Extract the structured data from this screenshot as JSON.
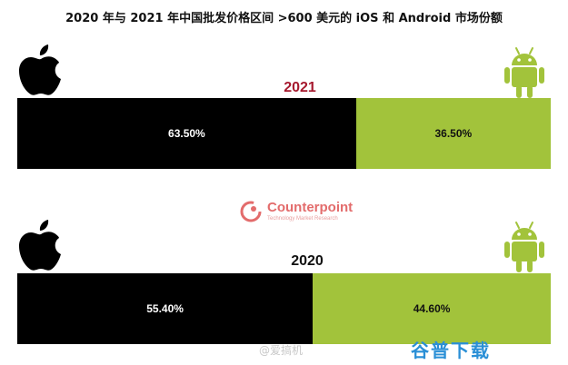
{
  "chart_data": {
    "type": "bar",
    "title": "2020 年与 2021 年中国批发价格区间 >600 美元的 iOS 和 Android 市场份额",
    "stacked": true,
    "orientation": "horizontal",
    "categories": [
      "2021",
      "2020"
    ],
    "series": [
      {
        "key": "ios",
        "values": [
          63.5,
          55.4
        ],
        "labels": [
          "63.50%",
          "55.40%"
        ]
      },
      {
        "key": "android",
        "values": [
          36.5,
          44.6
        ],
        "labels": [
          "36.50%",
          "44.60%"
        ]
      }
    ],
    "xlim": [
      0,
      100
    ],
    "grid": false,
    "legend": "icons at left (iOS) and right (Android)"
  },
  "colors": {
    "ios": "#000000",
    "android": "#a2c33b",
    "year_2021": "#a6192e",
    "year_2020": "#111111"
  },
  "icons": {
    "ios": "apple-logo-icon",
    "android": "android-robot-icon"
  },
  "brand": {
    "name": "Counterpoint",
    "tagline": "Technology Market Research"
  },
  "watermarks": {
    "weibo": "@爱搞机",
    "site": "谷普下载"
  }
}
